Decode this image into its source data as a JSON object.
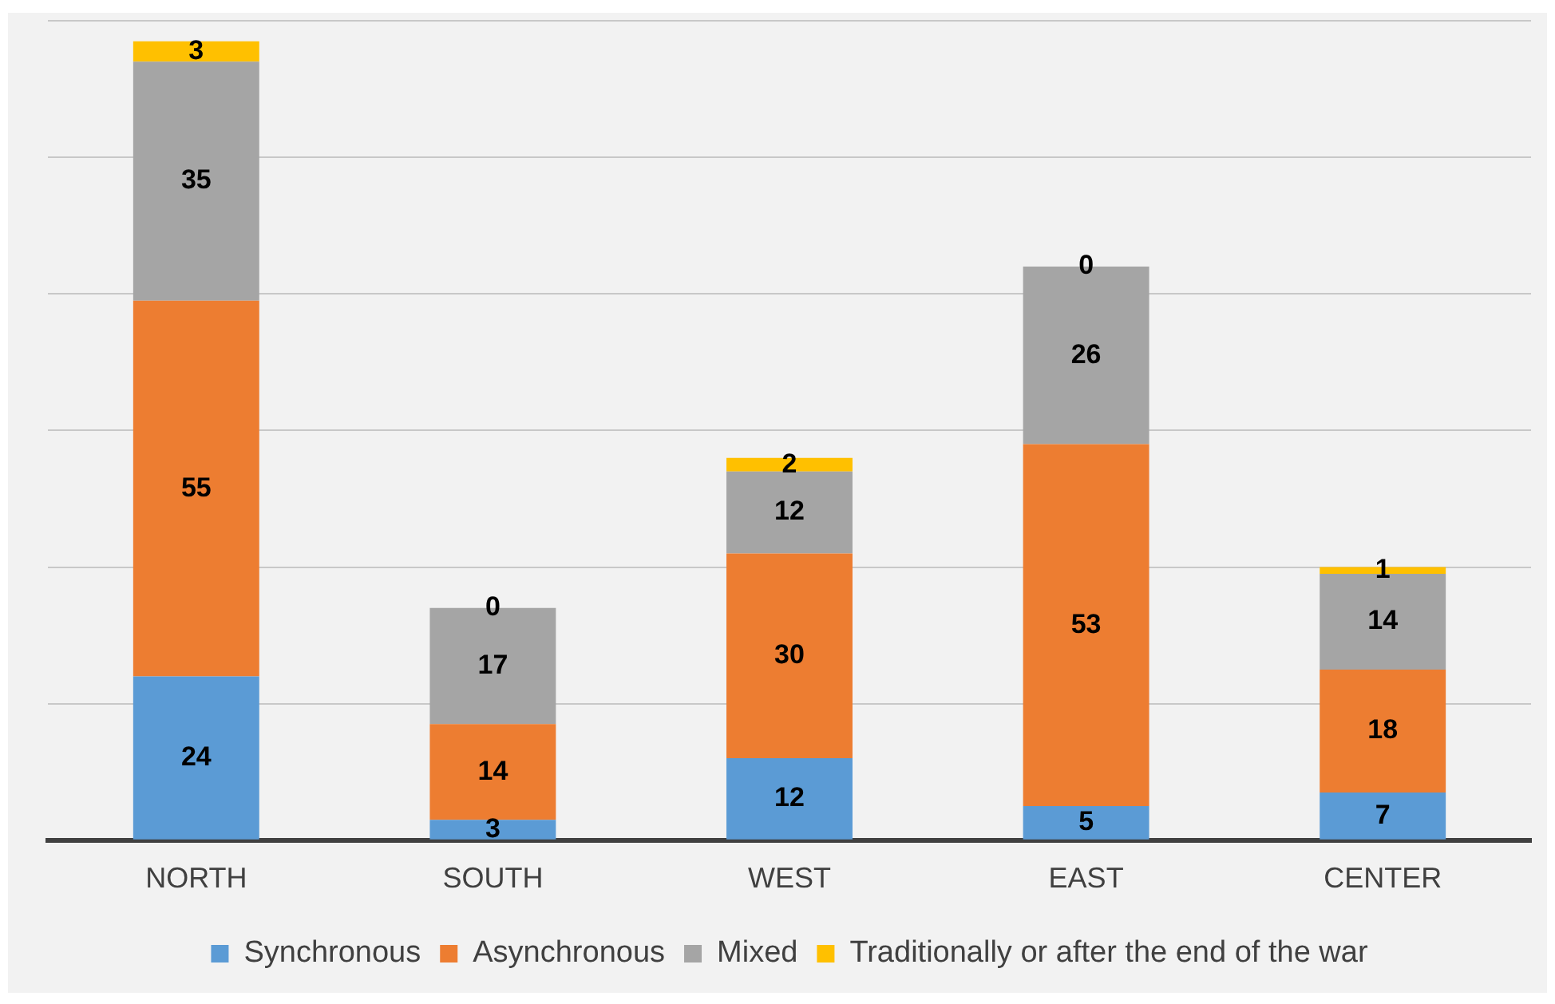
{
  "chart_data": {
    "type": "bar",
    "stacked": true,
    "categories": [
      "NORTH",
      "SOUTH",
      "WEST",
      "EAST",
      "CENTER"
    ],
    "series": [
      {
        "name": "Synchronous",
        "color": "#5b9bd5",
        "values": [
          24,
          3,
          12,
          5,
          7
        ]
      },
      {
        "name": "Asynchronous",
        "color": "#ed7d31",
        "values": [
          55,
          14,
          30,
          53,
          18
        ]
      },
      {
        "name": "Mixed",
        "color": "#a5a5a5",
        "values": [
          35,
          17,
          12,
          26,
          14
        ]
      },
      {
        "name": "Traditionally or after the end of the war",
        "color": "#ffc000",
        "values": [
          3,
          0,
          2,
          0,
          1
        ]
      }
    ],
    "ylim": [
      0,
      120
    ],
    "yticks": [
      {
        "value": 0,
        "label": null
      },
      {
        "value": 20,
        "label": null
      },
      {
        "value": 40,
        "label": null
      },
      {
        "value": 60,
        "label": null
      },
      {
        "value": 80,
        "label": null
      },
      {
        "value": 100,
        "label": null
      },
      {
        "value": 120,
        "label": null
      }
    ],
    "grid": "y",
    "tick_labels": "x",
    "data_labels": true,
    "legend": "bottom"
  }
}
